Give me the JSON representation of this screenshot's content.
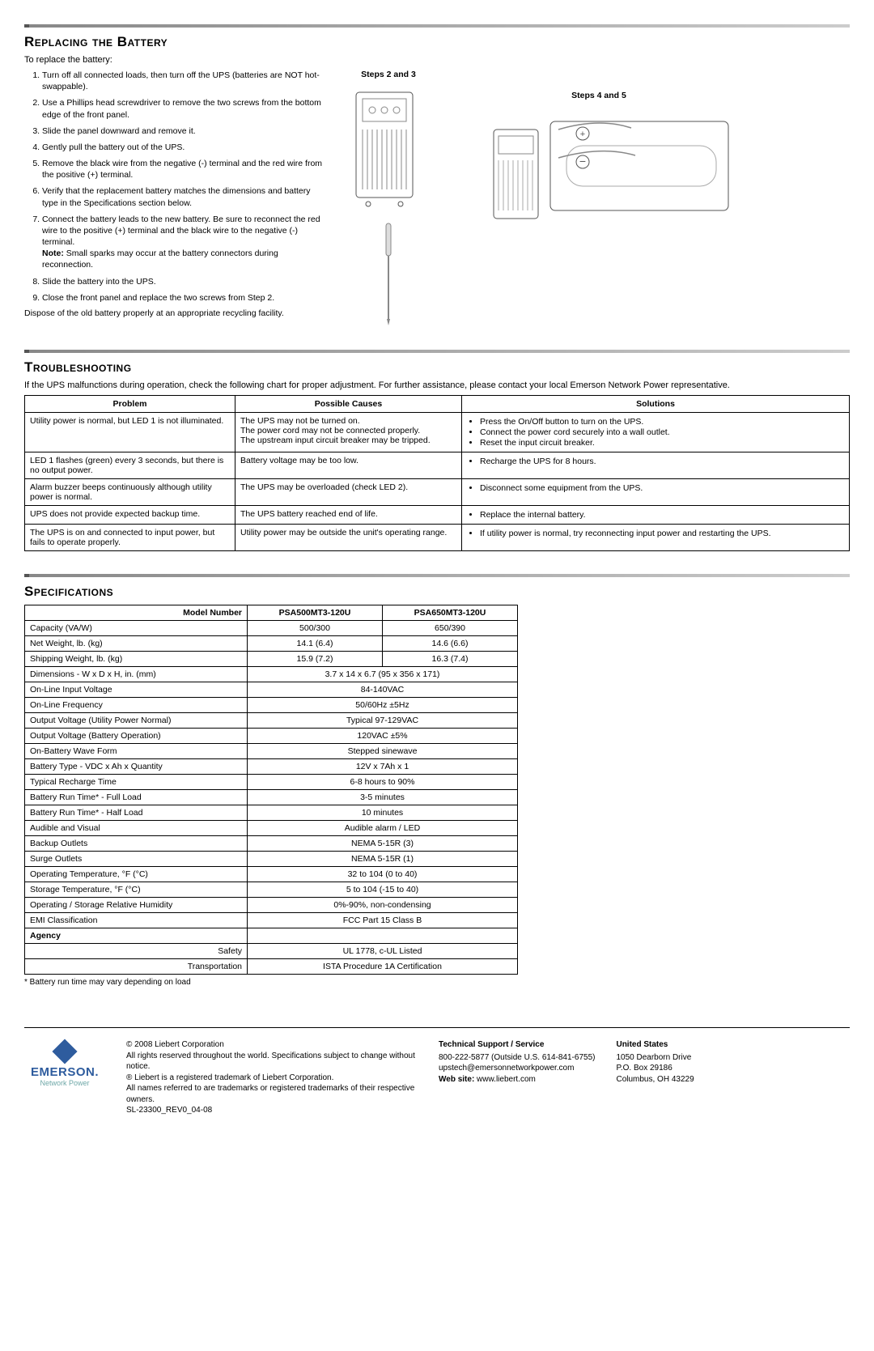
{
  "replacing": {
    "heading": "Replacing the Battery",
    "intro": "To replace the battery:",
    "steps": [
      "Turn off all connected loads, then turn off the UPS (batteries are NOT hot-swappable).",
      "Use a Phillips head screwdriver to remove the two screws from the bottom edge of the front panel.",
      "Slide the panel downward and remove it.",
      "Gently pull the battery out of the UPS.",
      "Remove the black wire from the negative (-) terminal and the red wire from the positive (+) terminal.",
      "Verify that the replacement battery matches the dimensions and battery type in the Specifications section below.",
      "Connect the battery leads to the new battery. Be sure to reconnect the red wire to the positive (+) terminal and the black wire to the negative (-) terminal.",
      "Slide the battery into the UPS.",
      "Close the front panel and replace the two screws from Step 2."
    ],
    "note_label": "Note:",
    "note_text": " Small sparks may occur at the battery connectors during reconnection.",
    "dispose": "Dispose of the old battery properly at an appropriate recycling facility.",
    "diag_label_1": "Steps 2 and 3",
    "diag_label_2": "Steps 4 and 5"
  },
  "troubleshooting": {
    "heading": "Troubleshooting",
    "intro": "If the UPS malfunctions during operation, check the following chart for proper adjustment. For further assistance, please contact your local Emerson Network Power representative.",
    "headers": {
      "problem": "Problem",
      "causes": "Possible Causes",
      "solutions": "Solutions"
    },
    "rows": [
      {
        "problem": "Utility power is normal, but LED 1 is not illuminated.",
        "causes": [
          "The UPS may not be turned on.",
          "The power cord may not be connected properly.",
          "The upstream input circuit breaker may be tripped."
        ],
        "solutions": [
          "Press the On/Off button to turn on the UPS.",
          "Connect the power cord securely into a wall outlet.",
          "Reset the input circuit breaker."
        ]
      },
      {
        "problem": "LED 1 flashes (green) every 3 seconds, but there is no output power.",
        "causes": [
          "Battery voltage may be too low."
        ],
        "solutions": [
          "Recharge the UPS for 8 hours."
        ]
      },
      {
        "problem": "Alarm buzzer beeps continuously although utility power is normal.",
        "causes": [
          "The UPS may be overloaded (check LED 2)."
        ],
        "solutions": [
          "Disconnect some equipment from the UPS."
        ]
      },
      {
        "problem": "UPS does not provide expected backup time.",
        "causes": [
          "The UPS battery reached end of life."
        ],
        "solutions": [
          "Replace the internal battery."
        ]
      },
      {
        "problem": "The UPS is on and connected to input power, but fails to operate properly.",
        "causes": [
          "Utility power may be outside the unit's operating range."
        ],
        "solutions": [
          "If utility power is normal, try reconnecting input power and restarting the UPS."
        ]
      }
    ]
  },
  "specs": {
    "heading": "Specifications",
    "model_header": "Model Number",
    "models": [
      "PSA500MT3-120U",
      "PSA650MT3-120U"
    ],
    "rows_split": [
      {
        "label": "Capacity (VA/W)",
        "vals": [
          "500/300",
          "650/390"
        ]
      },
      {
        "label": "Net Weight, lb. (kg)",
        "vals": [
          "14.1 (6.4)",
          "14.6 (6.6)"
        ]
      },
      {
        "label": "Shipping Weight, lb. (kg)",
        "vals": [
          "15.9 (7.2)",
          "16.3 (7.4)"
        ]
      }
    ],
    "rows_merged": [
      {
        "label": "Dimensions - W x D x H, in. (mm)",
        "val": "3.7 x 14 x 6.7 (95 x 356 x 171)"
      },
      {
        "label": "On-Line Input Voltage",
        "val": "84-140VAC"
      },
      {
        "label": "On-Line Frequency",
        "val": "50/60Hz ±5Hz"
      },
      {
        "label": "Output Voltage (Utility Power Normal)",
        "val": "Typical 97-129VAC"
      },
      {
        "label": "Output Voltage (Battery Operation)",
        "val": "120VAC ±5%"
      },
      {
        "label": "On-Battery Wave Form",
        "val": "Stepped sinewave"
      },
      {
        "label": "Battery Type - VDC x Ah x Quantity",
        "val": "12V x 7Ah x 1"
      },
      {
        "label": "Typical Recharge Time",
        "val": "6-8 hours to 90%"
      },
      {
        "label": "Battery Run Time* - Full Load",
        "val": "3-5 minutes"
      },
      {
        "label": "Battery Run Time* - Half Load",
        "val": "10 minutes"
      },
      {
        "label": "Audible and Visual",
        "val": "Audible alarm / LED"
      },
      {
        "label": "Backup Outlets",
        "val": "NEMA 5-15R (3)"
      },
      {
        "label": "Surge Outlets",
        "val": "NEMA 5-15R (1)"
      },
      {
        "label": "Operating Temperature, °F (°C)",
        "val": "32 to 104 (0 to 40)"
      },
      {
        "label": "Storage Temperature, °F (°C)",
        "val": "5 to 104 (-15 to 40)"
      },
      {
        "label": "Operating / Storage Relative Humidity",
        "val": "0%-90%, non-condensing"
      },
      {
        "label": "EMI Classification",
        "val": "FCC Part 15 Class B"
      }
    ],
    "agency_header": "Agency",
    "agency_rows": [
      {
        "label": "Safety",
        "val": "UL 1778, c-UL Listed"
      },
      {
        "label": "Transportation",
        "val": "ISTA Procedure 1A Certification"
      }
    ],
    "footnote": "* Battery run time may vary depending on load"
  },
  "footer": {
    "brand": "EMERSON.",
    "tagline": "Network Power",
    "legal1": "© 2008 Liebert Corporation",
    "legal2": "All rights reserved throughout the world. Specifications subject to change without notice.",
    "legal3": "® Liebert is a registered trademark of Liebert Corporation.",
    "legal4": "All names referred to are trademarks or registered trademarks of their respective owners.",
    "docnum": "SL-23300_REV0_04-08",
    "support_head": "Technical Support / Service",
    "support_phone": "800-222-5877 (Outside U.S. 614-841-6755)",
    "support_email": "upstech@emersonnetworkpower.com",
    "support_web_label": "Web site: ",
    "support_web": "www.liebert.com",
    "us_head": "United States",
    "us_addr1": "1050 Dearborn Drive",
    "us_addr2": "P.O. Box 29186",
    "us_addr3": "Columbus, OH 43229"
  }
}
